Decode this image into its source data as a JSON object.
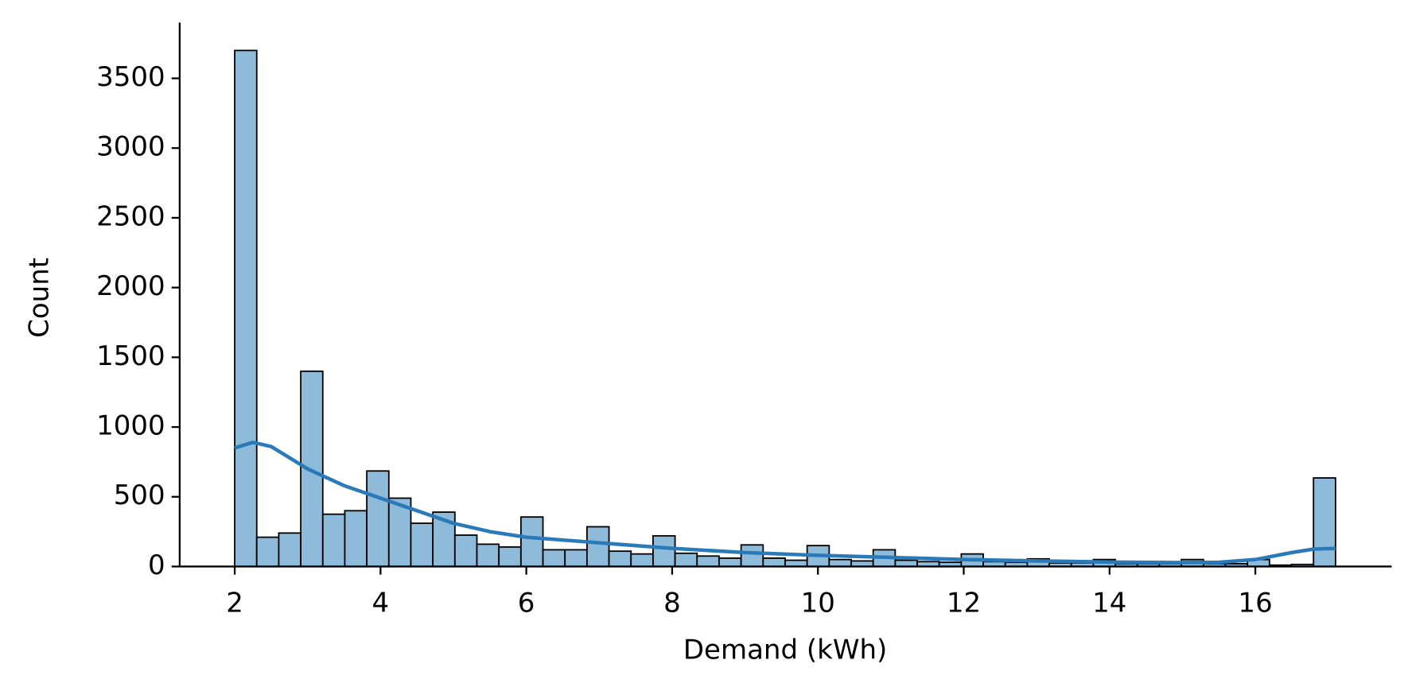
{
  "chart_data": {
    "type": "histogram",
    "xlabel": "Demand (kWh)",
    "ylabel": "Count",
    "bins": [
      2,
      2.302,
      2.604,
      2.906,
      3.208,
      3.51,
      3.812,
      4.114,
      4.416,
      4.718,
      5.02,
      5.322,
      5.624,
      5.926,
      6.228,
      6.53,
      6.832,
      7.134,
      7.436,
      7.738,
      8.04,
      8.342,
      8.644,
      8.946,
      9.248,
      9.55,
      9.852,
      10.154,
      10.456,
      10.758,
      11.06,
      11.362,
      11.664,
      11.966,
      12.268,
      12.57,
      12.872,
      13.174,
      13.476,
      13.778,
      14.08,
      14.382,
      14.684,
      14.986,
      15.288,
      15.59,
      15.892,
      16.194,
      16.496,
      16.798,
      17.1
    ],
    "values": [
      3700,
      210,
      240,
      1400,
      375,
      400,
      685,
      490,
      310,
      390,
      225,
      160,
      140,
      355,
      120,
      120,
      285,
      110,
      90,
      220,
      95,
      75,
      60,
      155,
      60,
      45,
      150,
      50,
      40,
      120,
      45,
      35,
      30,
      90,
      35,
      30,
      55,
      25,
      25,
      50,
      20,
      20,
      20,
      50,
      20,
      20,
      50,
      10,
      15,
      635
    ],
    "color": "#8fbbda",
    "edgecolor": "#000000",
    "kde": {
      "color": "#2a7ab9",
      "x": [
        2,
        2.25,
        2.5,
        3,
        3.5,
        4,
        4.5,
        5,
        5.5,
        6,
        7,
        8,
        9,
        10,
        11,
        12,
        13,
        14,
        15,
        15.5,
        16,
        16.5,
        16.8,
        17.1
      ],
      "values": [
        850,
        890,
        860,
        700,
        580,
        490,
        400,
        310,
        250,
        210,
        170,
        130,
        100,
        80,
        65,
        50,
        40,
        32,
        28,
        30,
        50,
        100,
        125,
        130
      ]
    },
    "xlim": [
      1.245,
      17.87
    ],
    "ylim": [
      0,
      3900
    ],
    "xticks": [
      2,
      4,
      6,
      8,
      10,
      12,
      14,
      16
    ],
    "yticks": [
      0,
      500,
      1000,
      1500,
      2000,
      2500,
      3000,
      3500
    ]
  }
}
